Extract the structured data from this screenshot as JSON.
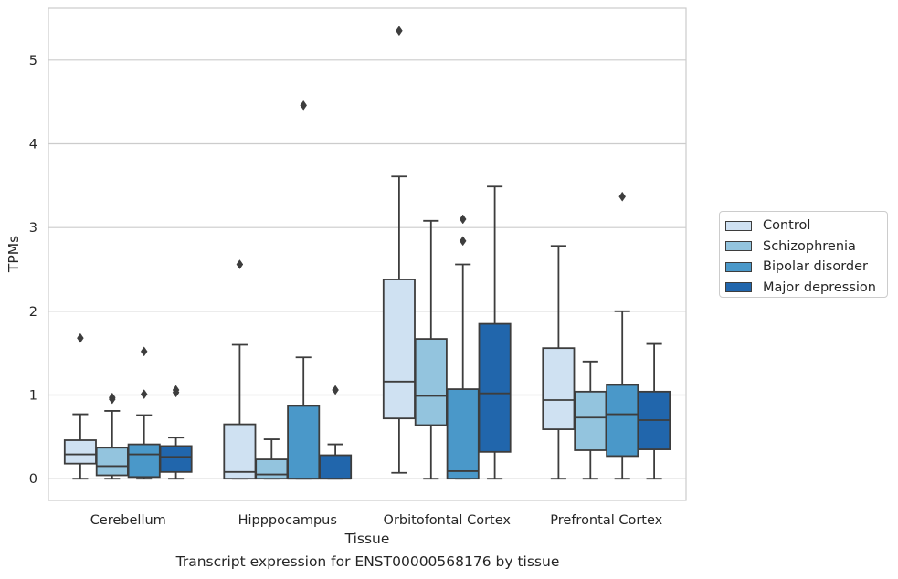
{
  "chart_data": {
    "type": "boxplot",
    "xlabel": "Tissue",
    "ylabel": "TPMs",
    "caption": "Transcript expression for ENST00000568176 by tissue",
    "ylim": [
      -0.26,
      5.62
    ],
    "yticks": [
      0,
      1,
      2,
      3,
      4,
      5
    ],
    "grid": true,
    "legend_position": "right",
    "categories": [
      "Cerebellum",
      "Hipppocampus",
      "Orbitofontal Cortex",
      "Prefrontal Cortex"
    ],
    "series": [
      {
        "name": "Control",
        "color": "#cfe1f2",
        "boxes": [
          {
            "min": 0.0,
            "q1": 0.18,
            "median": 0.29,
            "q3": 0.46,
            "max": 0.77,
            "outliers": [
              1.68
            ]
          },
          {
            "min": 0.0,
            "q1": 0.0,
            "median": 0.08,
            "q3": 0.65,
            "max": 1.6,
            "outliers": [
              2.56
            ]
          },
          {
            "min": 0.07,
            "q1": 0.72,
            "median": 1.16,
            "q3": 2.38,
            "max": 3.61,
            "outliers": [
              5.35
            ]
          },
          {
            "min": 0.0,
            "q1": 0.59,
            "median": 0.94,
            "q3": 1.56,
            "max": 2.78,
            "outliers": []
          }
        ]
      },
      {
        "name": "Schizophrenia",
        "color": "#93c4de",
        "boxes": [
          {
            "min": 0.0,
            "q1": 0.04,
            "median": 0.15,
            "q3": 0.37,
            "max": 0.81,
            "outliers": [
              0.95,
              0.97
            ]
          },
          {
            "min": 0.0,
            "q1": 0.0,
            "median": 0.05,
            "q3": 0.23,
            "max": 0.47,
            "outliers": []
          },
          {
            "min": 0.0,
            "q1": 0.64,
            "median": 0.99,
            "q3": 1.67,
            "max": 3.08,
            "outliers": []
          },
          {
            "min": 0.0,
            "q1": 0.34,
            "median": 0.73,
            "q3": 1.04,
            "max": 1.4,
            "outliers": []
          }
        ]
      },
      {
        "name": "Bipolar disorder",
        "color": "#4a98c9",
        "boxes": [
          {
            "min": 0.0,
            "q1": 0.02,
            "median": 0.29,
            "q3": 0.41,
            "max": 0.76,
            "outliers": [
              1.01,
              1.52
            ]
          },
          {
            "min": 0.0,
            "q1": 0.0,
            "median": 0.0,
            "q3": 0.87,
            "max": 1.45,
            "outliers": [
              4.46
            ]
          },
          {
            "min": 0.0,
            "q1": 0.0,
            "median": 0.09,
            "q3": 1.07,
            "max": 2.56,
            "outliers": [
              2.84,
              3.1
            ]
          },
          {
            "min": 0.0,
            "q1": 0.27,
            "median": 0.77,
            "q3": 1.12,
            "max": 2.0,
            "outliers": [
              3.37
            ]
          }
        ]
      },
      {
        "name": "Major depression",
        "color": "#2166ac",
        "boxes": [
          {
            "min": 0.0,
            "q1": 0.08,
            "median": 0.26,
            "q3": 0.39,
            "max": 0.49,
            "outliers": [
              1.03,
              1.06
            ]
          },
          {
            "min": 0.0,
            "q1": 0.0,
            "median": 0.0,
            "q3": 0.28,
            "max": 0.41,
            "outliers": [
              1.06
            ]
          },
          {
            "min": 0.0,
            "q1": 0.32,
            "median": 1.02,
            "q3": 1.85,
            "max": 3.49,
            "outliers": []
          },
          {
            "min": 0.0,
            "q1": 0.35,
            "median": 0.7,
            "q3": 1.04,
            "max": 1.61,
            "outliers": []
          }
        ]
      }
    ]
  }
}
